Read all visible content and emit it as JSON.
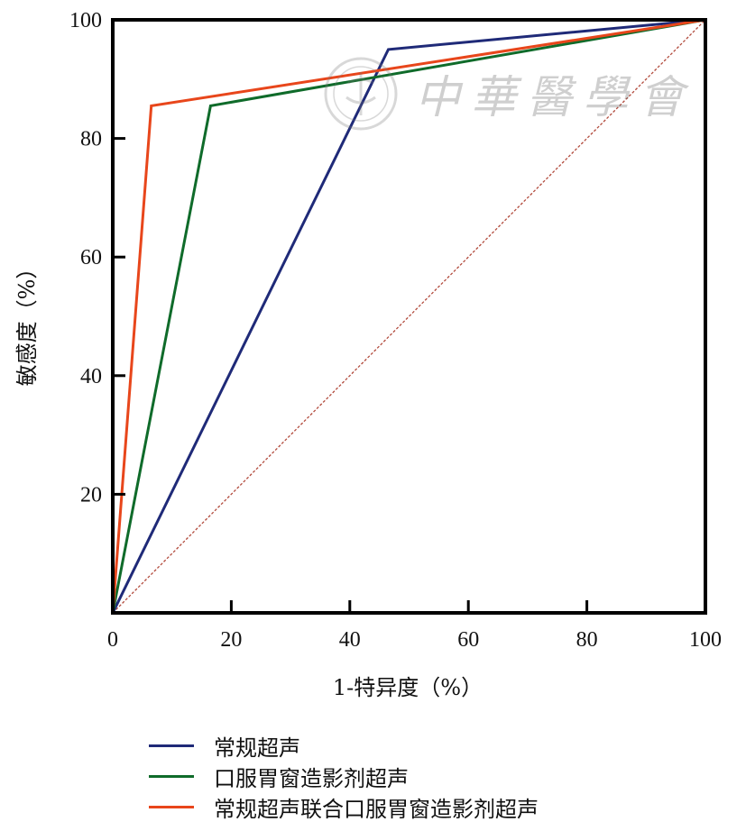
{
  "chart_data": {
    "type": "line",
    "title": "",
    "xlabel": "1-特异度（%）",
    "ylabel": "敏感度（%）",
    "xlim": [
      0,
      100
    ],
    "ylim": [
      0,
      100
    ],
    "x_ticks": [
      "0",
      "20",
      "40",
      "60",
      "80",
      "100"
    ],
    "y_ticks": [
      "20",
      "40",
      "60",
      "80",
      "100"
    ],
    "grid": false,
    "legend_position": "bottom",
    "series": [
      {
        "name": "常规超声",
        "color": "#1f2a78",
        "points": [
          [
            0,
            0
          ],
          [
            46.5,
            95
          ],
          [
            100,
            100
          ]
        ]
      },
      {
        "name": "口服胃窗造影剂超声",
        "color": "#0f6b2a",
        "points": [
          [
            0,
            0
          ],
          [
            16.5,
            85.5
          ],
          [
            100,
            100
          ]
        ]
      },
      {
        "name": "常规超声联合口服胃窗造影剂超声",
        "color": "#e8461b",
        "points": [
          [
            0,
            0
          ],
          [
            6.5,
            85.5
          ],
          [
            100,
            100
          ]
        ]
      }
    ],
    "reference_line": {
      "color": "#b24a3c",
      "style": "dashed",
      "points": [
        [
          0,
          0
        ],
        [
          100,
          100
        ]
      ]
    }
  },
  "watermark": {
    "text": "中華醫學會"
  }
}
